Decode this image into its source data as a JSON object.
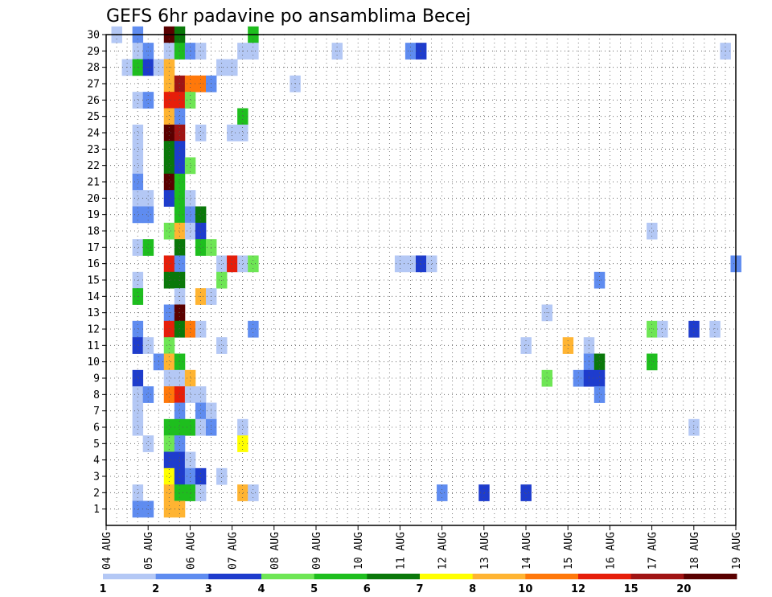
{
  "chart_data": {
    "type": "heatmap",
    "title": "GEFS 6hr padavine po ansamblima Becej",
    "x_labels": [
      "04 AUG",
      "05 AUG",
      "06 AUG",
      "07 AUG",
      "08 AUG",
      "09 AUG",
      "10 AUG",
      "11 AUG",
      "12 AUG",
      "13 AUG",
      "14 AUG",
      "15 AUG",
      "16 AUG",
      "17 AUG",
      "18 AUG",
      "19 AUG"
    ],
    "x_unit": "6-hour step (4 per day)",
    "x_range": [
      0,
      60
    ],
    "y_labels": [
      "1",
      "2",
      "3",
      "4",
      "5",
      "6",
      "7",
      "8",
      "9",
      "10",
      "11",
      "12",
      "13",
      "14",
      "15",
      "16",
      "17",
      "18",
      "19",
      "20",
      "21",
      "22",
      "23",
      "24",
      "25",
      "26",
      "27",
      "28",
      "29",
      "30"
    ],
    "y_range": [
      0,
      30
    ],
    "grid": true,
    "colorbar": {
      "colors": [
        "#b4c8f5",
        "#5f8cf0",
        "#1e3ccd",
        "#6ee655",
        "#1ebe1e",
        "#0a780a",
        "#ffff00",
        "#ffb432",
        "#ff780a",
        "#e61e0a",
        "#a01414",
        "#5a0000"
      ],
      "tick_labels": [
        "1",
        "2",
        "3",
        "4",
        "5",
        "6",
        "7",
        "8",
        "10",
        "12",
        "15",
        "20"
      ]
    },
    "cells": [
      [
        6,
        30,
        11
      ],
      [
        7,
        30,
        5
      ],
      [
        14,
        30,
        4
      ],
      [
        3,
        30,
        1
      ],
      [
        14,
        29,
        0
      ],
      [
        22,
        29,
        0
      ],
      [
        1,
        30,
        0
      ],
      [
        3,
        29,
        0
      ],
      [
        4,
        29,
        1
      ],
      [
        6,
        29,
        0
      ],
      [
        7,
        29,
        4
      ],
      [
        8,
        29,
        1
      ],
      [
        9,
        29,
        0
      ],
      [
        13,
        29,
        0
      ],
      [
        29,
        29,
        1
      ],
      [
        30,
        29,
        2
      ],
      [
        59,
        29,
        0
      ],
      [
        2,
        28,
        0
      ],
      [
        3,
        28,
        4
      ],
      [
        4,
        28,
        2
      ],
      [
        5,
        28,
        0
      ],
      [
        6,
        28,
        7
      ],
      [
        11,
        28,
        0
      ],
      [
        12,
        28,
        0
      ],
      [
        6,
        27,
        7
      ],
      [
        7,
        27,
        10
      ],
      [
        8,
        27,
        8
      ],
      [
        9,
        27,
        8
      ],
      [
        10,
        27,
        1
      ],
      [
        18,
        27,
        0
      ],
      [
        3,
        26,
        0
      ],
      [
        4,
        26,
        1
      ],
      [
        6,
        26,
        9
      ],
      [
        7,
        26,
        9
      ],
      [
        8,
        26,
        3
      ],
      [
        6,
        25,
        7
      ],
      [
        7,
        25,
        1
      ],
      [
        13,
        25,
        4
      ],
      [
        3,
        24,
        0
      ],
      [
        6,
        24,
        11
      ],
      [
        7,
        24,
        10
      ],
      [
        9,
        24,
        0
      ],
      [
        12,
        24,
        0
      ],
      [
        13,
        24,
        0
      ],
      [
        3,
        23,
        0
      ],
      [
        6,
        23,
        5
      ],
      [
        7,
        23,
        2
      ],
      [
        3,
        22,
        0
      ],
      [
        6,
        22,
        5
      ],
      [
        7,
        22,
        2
      ],
      [
        8,
        22,
        3
      ],
      [
        3,
        21,
        1
      ],
      [
        6,
        21,
        11
      ],
      [
        7,
        21,
        4
      ],
      [
        3,
        20,
        0
      ],
      [
        4,
        20,
        0
      ],
      [
        6,
        20,
        2
      ],
      [
        7,
        20,
        4
      ],
      [
        8,
        20,
        0
      ],
      [
        3,
        19,
        1
      ],
      [
        4,
        19,
        1
      ],
      [
        7,
        19,
        4
      ],
      [
        8,
        19,
        1
      ],
      [
        9,
        19,
        5
      ],
      [
        6,
        18,
        3
      ],
      [
        7,
        18,
        7
      ],
      [
        8,
        18,
        0
      ],
      [
        9,
        18,
        2
      ],
      [
        52,
        18,
        0
      ],
      [
        3,
        17,
        0
      ],
      [
        4,
        17,
        4
      ],
      [
        7,
        17,
        5
      ],
      [
        9,
        17,
        4
      ],
      [
        10,
        17,
        3
      ],
      [
        6,
        16,
        9
      ],
      [
        7,
        16,
        1
      ],
      [
        11,
        16,
        0
      ],
      [
        12,
        16,
        9
      ],
      [
        13,
        16,
        0
      ],
      [
        14,
        16,
        3
      ],
      [
        28,
        16,
        0
      ],
      [
        29,
        16,
        0
      ],
      [
        30,
        16,
        2
      ],
      [
        31,
        16,
        0
      ],
      [
        60,
        16,
        1
      ],
      [
        3,
        15,
        0
      ],
      [
        6,
        15,
        5
      ],
      [
        7,
        15,
        5
      ],
      [
        11,
        15,
        3
      ],
      [
        47,
        15,
        1
      ],
      [
        3,
        14,
        4
      ],
      [
        7,
        14,
        0
      ],
      [
        9,
        14,
        7
      ],
      [
        10,
        14,
        0
      ],
      [
        6,
        13,
        1
      ],
      [
        7,
        13,
        11
      ],
      [
        42,
        13,
        0
      ],
      [
        3,
        12,
        1
      ],
      [
        6,
        12,
        9
      ],
      [
        7,
        12,
        5
      ],
      [
        8,
        12,
        8
      ],
      [
        9,
        12,
        0
      ],
      [
        14,
        12,
        1
      ],
      [
        52,
        12,
        3
      ],
      [
        53,
        12,
        0
      ],
      [
        56,
        12,
        2
      ],
      [
        58,
        12,
        0
      ],
      [
        3,
        11,
        2
      ],
      [
        4,
        11,
        0
      ],
      [
        6,
        11,
        3
      ],
      [
        11,
        11,
        0
      ],
      [
        40,
        11,
        0
      ],
      [
        44,
        11,
        7
      ],
      [
        46,
        11,
        0
      ],
      [
        5,
        10,
        1
      ],
      [
        6,
        10,
        7
      ],
      [
        7,
        10,
        4
      ],
      [
        46,
        10,
        1
      ],
      [
        47,
        10,
        5
      ],
      [
        52,
        10,
        4
      ],
      [
        3,
        9,
        2
      ],
      [
        6,
        9,
        0
      ],
      [
        7,
        9,
        0
      ],
      [
        8,
        9,
        7
      ],
      [
        42,
        9,
        3
      ],
      [
        45,
        9,
        1
      ],
      [
        46,
        9,
        2
      ],
      [
        47,
        9,
        2
      ],
      [
        3,
        8,
        0
      ],
      [
        4,
        8,
        1
      ],
      [
        6,
        8,
        8
      ],
      [
        7,
        8,
        9
      ],
      [
        8,
        8,
        0
      ],
      [
        9,
        8,
        0
      ],
      [
        47,
        8,
        1
      ],
      [
        3,
        7,
        0
      ],
      [
        7,
        7,
        1
      ],
      [
        9,
        7,
        1
      ],
      [
        10,
        7,
        0
      ],
      [
        3,
        6,
        0
      ],
      [
        6,
        6,
        4
      ],
      [
        7,
        6,
        4
      ],
      [
        8,
        6,
        4
      ],
      [
        9,
        6,
        0
      ],
      [
        10,
        6,
        1
      ],
      [
        13,
        6,
        0
      ],
      [
        56,
        6,
        0
      ],
      [
        4,
        5,
        0
      ],
      [
        6,
        5,
        3
      ],
      [
        7,
        5,
        1
      ],
      [
        13,
        5,
        6
      ],
      [
        6,
        4,
        2
      ],
      [
        7,
        4,
        2
      ],
      [
        8,
        4,
        0
      ],
      [
        6,
        3,
        6
      ],
      [
        7,
        3,
        2
      ],
      [
        8,
        3,
        1
      ],
      [
        9,
        3,
        2
      ],
      [
        11,
        3,
        0
      ],
      [
        3,
        2,
        0
      ],
      [
        6,
        2,
        7
      ],
      [
        7,
        2,
        4
      ],
      [
        8,
        2,
        4
      ],
      [
        9,
        2,
        0
      ],
      [
        13,
        2,
        7
      ],
      [
        14,
        2,
        0
      ],
      [
        32,
        2,
        1
      ],
      [
        36,
        2,
        2
      ],
      [
        40,
        2,
        2
      ],
      [
        6,
        1,
        7
      ],
      [
        7,
        1,
        7
      ],
      [
        3,
        1,
        1
      ],
      [
        4,
        1,
        1
      ]
    ]
  }
}
